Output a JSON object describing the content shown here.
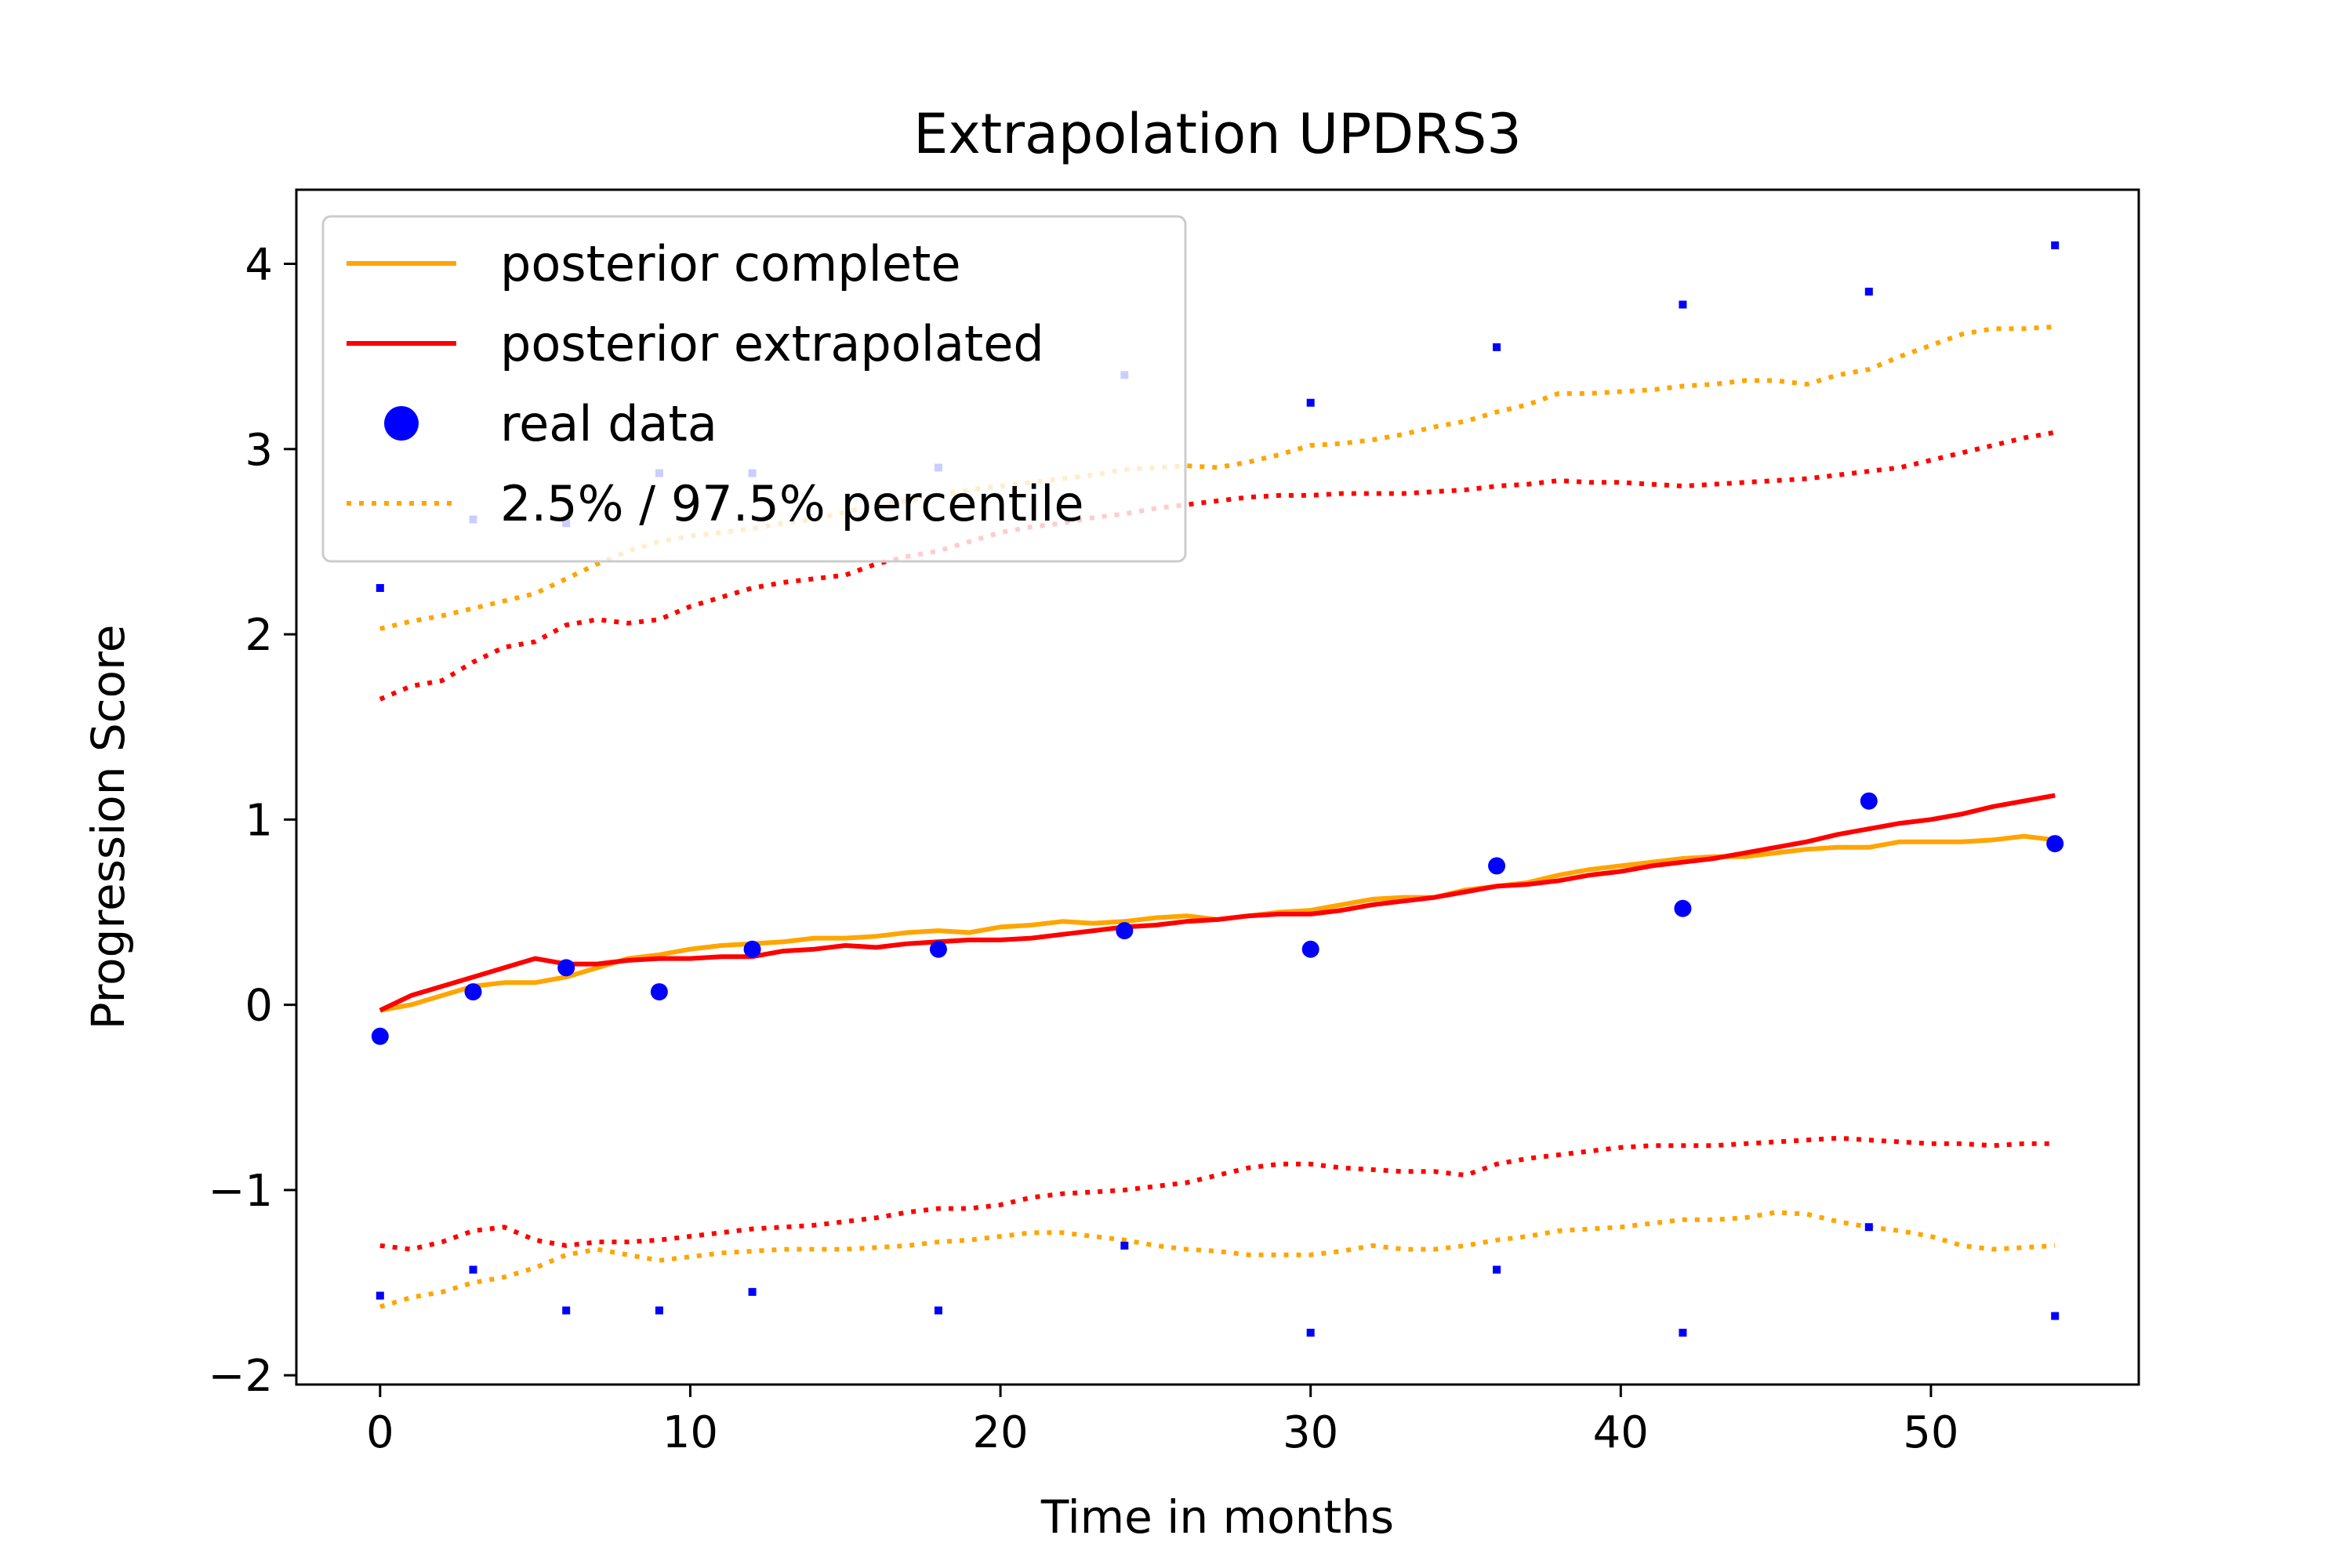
{
  "chart_data": {
    "type": "line",
    "title": "Extrapolation UPDRS3",
    "xlabel": "Time in months",
    "ylabel": "Progression Score",
    "xlim": [
      -2.7,
      56.7
    ],
    "ylim": [
      -2.05,
      4.4
    ],
    "xticks": [
      0,
      10,
      20,
      30,
      40,
      50
    ],
    "yticks": [
      -2,
      -1,
      0,
      1,
      2,
      3,
      4
    ],
    "ytick_labels": [
      "−2",
      "−1",
      "0",
      "1",
      "2",
      "3",
      "4"
    ],
    "grid": false,
    "legend_position": "upper-left",
    "series": [
      {
        "name": "posterior complete",
        "kind": "line",
        "color": "#ffa500",
        "x": [
          0,
          1,
          2,
          3,
          4,
          5,
          6,
          7,
          8,
          9,
          10,
          11,
          12,
          13,
          14,
          15,
          16,
          17,
          18,
          19,
          20,
          21,
          22,
          23,
          24,
          25,
          26,
          27,
          28,
          29,
          30,
          31,
          32,
          33,
          34,
          35,
          36,
          37,
          38,
          39,
          40,
          41,
          42,
          43,
          44,
          45,
          46,
          47,
          48,
          49,
          50,
          51,
          52,
          53,
          54
        ],
        "y": [
          -0.03,
          0.0,
          0.05,
          0.1,
          0.12,
          0.12,
          0.15,
          0.2,
          0.25,
          0.27,
          0.3,
          0.32,
          0.33,
          0.34,
          0.36,
          0.36,
          0.37,
          0.39,
          0.4,
          0.39,
          0.42,
          0.43,
          0.45,
          0.44,
          0.45,
          0.47,
          0.48,
          0.46,
          0.48,
          0.5,
          0.51,
          0.54,
          0.57,
          0.58,
          0.58,
          0.62,
          0.64,
          0.66,
          0.7,
          0.73,
          0.75,
          0.77,
          0.79,
          0.8,
          0.8,
          0.82,
          0.84,
          0.85,
          0.85,
          0.88,
          0.88,
          0.88,
          0.89,
          0.91,
          0.89
        ]
      },
      {
        "name": "posterior extrapolated",
        "kind": "line",
        "color": "#ff0000",
        "x": [
          0,
          1,
          2,
          3,
          4,
          5,
          6,
          7,
          8,
          9,
          10,
          11,
          12,
          13,
          14,
          15,
          16,
          17,
          18,
          19,
          20,
          21,
          22,
          23,
          24,
          25,
          26,
          27,
          28,
          29,
          30,
          31,
          32,
          33,
          34,
          35,
          36,
          37,
          38,
          39,
          40,
          41,
          42,
          43,
          44,
          45,
          46,
          47,
          48,
          49,
          50,
          51,
          52,
          53,
          54
        ],
        "y": [
          -0.03,
          0.05,
          0.1,
          0.15,
          0.2,
          0.25,
          0.22,
          0.22,
          0.24,
          0.25,
          0.25,
          0.26,
          0.26,
          0.29,
          0.3,
          0.32,
          0.31,
          0.33,
          0.34,
          0.35,
          0.35,
          0.36,
          0.38,
          0.4,
          0.42,
          0.43,
          0.45,
          0.46,
          0.48,
          0.49,
          0.49,
          0.51,
          0.54,
          0.56,
          0.58,
          0.61,
          0.64,
          0.65,
          0.67,
          0.7,
          0.72,
          0.75,
          0.77,
          0.79,
          0.82,
          0.85,
          0.88,
          0.92,
          0.95,
          0.98,
          1.0,
          1.03,
          1.07,
          1.1,
          1.13
        ]
      },
      {
        "name": "real data",
        "kind": "scatter",
        "color": "#0000ff",
        "x": [
          0,
          3,
          6,
          9,
          12,
          18,
          24,
          30,
          36,
          42,
          48,
          54
        ],
        "y": [
          -0.17,
          0.07,
          0.2,
          0.07,
          0.3,
          0.3,
          0.4,
          0.3,
          0.75,
          0.52,
          1.1,
          0.87
        ]
      },
      {
        "name": "2.5% / 97.5% percentile",
        "kind": "dotted",
        "color": "#ffa500",
        "x": [
          0,
          1,
          2,
          3,
          4,
          5,
          6,
          7,
          8,
          9,
          10,
          11,
          12,
          13,
          14,
          15,
          16,
          17,
          18,
          19,
          20,
          21,
          22,
          23,
          24,
          25,
          26,
          27,
          28,
          29,
          30,
          31,
          32,
          33,
          34,
          35,
          36,
          37,
          38,
          39,
          40,
          41,
          42,
          43,
          44,
          45,
          46,
          47,
          48,
          49,
          50,
          51,
          52,
          53,
          54
        ],
        "y": [
          2.03,
          2.07,
          2.1,
          2.14,
          2.18,
          2.22,
          2.3,
          2.38,
          2.45,
          2.5,
          2.53,
          2.55,
          2.57,
          2.6,
          2.62,
          2.66,
          2.7,
          2.72,
          2.75,
          2.78,
          2.8,
          2.82,
          2.84,
          2.86,
          2.89,
          2.9,
          2.91,
          2.9,
          2.93,
          2.97,
          3.02,
          3.03,
          3.05,
          3.08,
          3.12,
          3.15,
          3.2,
          3.24,
          3.3,
          3.3,
          3.31,
          3.32,
          3.34,
          3.35,
          3.37,
          3.37,
          3.35,
          3.4,
          3.43,
          3.5,
          3.56,
          3.62,
          3.65,
          3.65,
          3.66
        ]
      },
      {
        "name": "",
        "kind": "dotted",
        "color": "#ff0000",
        "x": [
          0,
          1,
          2,
          3,
          4,
          5,
          6,
          7,
          8,
          9,
          10,
          11,
          12,
          13,
          14,
          15,
          16,
          17,
          18,
          19,
          20,
          21,
          22,
          23,
          24,
          25,
          26,
          27,
          28,
          29,
          30,
          31,
          32,
          33,
          34,
          35,
          36,
          37,
          38,
          39,
          40,
          41,
          42,
          43,
          44,
          45,
          46,
          47,
          48,
          49,
          50,
          51,
          52,
          53,
          54
        ],
        "y": [
          1.65,
          1.72,
          1.75,
          1.85,
          1.93,
          1.96,
          2.05,
          2.08,
          2.06,
          2.08,
          2.15,
          2.2,
          2.25,
          2.28,
          2.3,
          2.32,
          2.38,
          2.42,
          2.45,
          2.5,
          2.55,
          2.58,
          2.6,
          2.63,
          2.65,
          2.68,
          2.7,
          2.72,
          2.74,
          2.75,
          2.75,
          2.76,
          2.76,
          2.76,
          2.77,
          2.78,
          2.8,
          2.81,
          2.83,
          2.82,
          2.82,
          2.81,
          2.8,
          2.81,
          2.82,
          2.83,
          2.84,
          2.86,
          2.88,
          2.9,
          2.94,
          2.98,
          3.02,
          3.06,
          3.09
        ]
      },
      {
        "name": "",
        "kind": "dotted",
        "color": "#ffa500",
        "x": [
          0,
          1,
          2,
          3,
          4,
          5,
          6,
          7,
          8,
          9,
          10,
          11,
          12,
          13,
          14,
          15,
          16,
          17,
          18,
          19,
          20,
          21,
          22,
          23,
          24,
          25,
          26,
          27,
          28,
          29,
          30,
          31,
          32,
          33,
          34,
          35,
          36,
          37,
          38,
          39,
          40,
          41,
          42,
          43,
          44,
          45,
          46,
          47,
          48,
          49,
          50,
          51,
          52,
          53,
          54
        ],
        "y": [
          -1.63,
          -1.58,
          -1.55,
          -1.5,
          -1.47,
          -1.42,
          -1.35,
          -1.32,
          -1.35,
          -1.38,
          -1.36,
          -1.34,
          -1.33,
          -1.32,
          -1.32,
          -1.32,
          -1.31,
          -1.3,
          -1.28,
          -1.27,
          -1.25,
          -1.23,
          -1.23,
          -1.25,
          -1.27,
          -1.3,
          -1.32,
          -1.33,
          -1.35,
          -1.35,
          -1.35,
          -1.33,
          -1.3,
          -1.32,
          -1.32,
          -1.3,
          -1.27,
          -1.25,
          -1.22,
          -1.21,
          -1.2,
          -1.18,
          -1.16,
          -1.16,
          -1.15,
          -1.12,
          -1.13,
          -1.17,
          -1.2,
          -1.22,
          -1.25,
          -1.3,
          -1.32,
          -1.31,
          -1.3
        ]
      },
      {
        "name": "",
        "kind": "dotted",
        "color": "#ff0000",
        "x": [
          0,
          1,
          2,
          3,
          4,
          5,
          6,
          7,
          8,
          9,
          10,
          11,
          12,
          13,
          14,
          15,
          16,
          17,
          18,
          19,
          20,
          21,
          22,
          23,
          24,
          25,
          26,
          27,
          28,
          29,
          30,
          31,
          32,
          33,
          34,
          35,
          36,
          37,
          38,
          39,
          40,
          41,
          42,
          43,
          44,
          45,
          46,
          47,
          48,
          49,
          50,
          51,
          52,
          53,
          54
        ],
        "y": [
          -1.3,
          -1.32,
          -1.28,
          -1.22,
          -1.2,
          -1.27,
          -1.3,
          -1.28,
          -1.28,
          -1.27,
          -1.25,
          -1.23,
          -1.21,
          -1.2,
          -1.19,
          -1.17,
          -1.15,
          -1.12,
          -1.1,
          -1.1,
          -1.08,
          -1.04,
          -1.02,
          -1.01,
          -1.0,
          -0.98,
          -0.96,
          -0.92,
          -0.88,
          -0.86,
          -0.86,
          -0.88,
          -0.89,
          -0.9,
          -0.9,
          -0.92,
          -0.86,
          -0.83,
          -0.81,
          -0.79,
          -0.77,
          -0.76,
          -0.76,
          -0.76,
          -0.75,
          -0.74,
          -0.73,
          -0.72,
          -0.73,
          -0.74,
          -0.75,
          -0.75,
          -0.76,
          -0.75,
          -0.75
        ]
      }
    ],
    "markers": [
      {
        "color": "#0000ff",
        "x": [
          0,
          3,
          6,
          9,
          12,
          18,
          24,
          30,
          36,
          42,
          48,
          54
        ],
        "y": [
          2.25,
          2.62,
          2.6,
          2.87,
          2.87,
          2.9,
          3.4,
          3.25,
          3.55,
          3.78,
          3.85,
          4.1
        ]
      },
      {
        "color": "#0000ff",
        "x": [
          0,
          3,
          6,
          9,
          12,
          18,
          24,
          30,
          36,
          42,
          48,
          54
        ],
        "y": [
          -1.57,
          -1.43,
          -1.65,
          -1.65,
          -1.55,
          -1.65,
          -1.3,
          -1.77,
          -1.43,
          -1.77,
          -1.2,
          -1.68
        ]
      }
    ]
  }
}
